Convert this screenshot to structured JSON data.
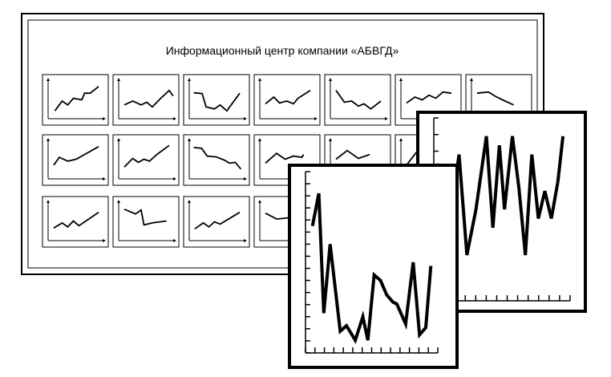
{
  "dashboard": {
    "title": "Информационный центр компании «АБВГД»"
  },
  "mini_charts": [
    [
      [
        0.12,
        0.2
      ],
      [
        0.25,
        0.45
      ],
      [
        0.35,
        0.35
      ],
      [
        0.45,
        0.52
      ],
      [
        0.6,
        0.48
      ],
      [
        0.65,
        0.65
      ],
      [
        0.75,
        0.65
      ],
      [
        0.9,
        0.82
      ]
    ],
    [
      [
        0.1,
        0.35
      ],
      [
        0.25,
        0.45
      ],
      [
        0.4,
        0.35
      ],
      [
        0.5,
        0.42
      ],
      [
        0.6,
        0.3
      ],
      [
        0.75,
        0.52
      ],
      [
        0.9,
        0.72
      ],
      [
        0.97,
        0.58
      ]
    ],
    [
      [
        0.08,
        0.66
      ],
      [
        0.23,
        0.64
      ],
      [
        0.3,
        0.3
      ],
      [
        0.45,
        0.25
      ],
      [
        0.55,
        0.35
      ],
      [
        0.67,
        0.2
      ],
      [
        0.9,
        0.65
      ]
    ],
    [
      [
        0.1,
        0.38
      ],
      [
        0.25,
        0.55
      ],
      [
        0.35,
        0.4
      ],
      [
        0.48,
        0.45
      ],
      [
        0.6,
        0.38
      ],
      [
        0.68,
        0.52
      ],
      [
        0.9,
        0.72
      ]
    ],
    [
      [
        0.1,
        0.72
      ],
      [
        0.25,
        0.42
      ],
      [
        0.38,
        0.45
      ],
      [
        0.5,
        0.32
      ],
      [
        0.6,
        0.38
      ],
      [
        0.72,
        0.25
      ],
      [
        0.9,
        0.45
      ]
    ],
    [
      [
        0.1,
        0.4
      ],
      [
        0.25,
        0.55
      ],
      [
        0.38,
        0.48
      ],
      [
        0.5,
        0.6
      ],
      [
        0.62,
        0.52
      ],
      [
        0.75,
        0.68
      ],
      [
        0.9,
        0.65
      ]
    ],
    [
      [
        0.1,
        0.65
      ],
      [
        0.3,
        0.68
      ],
      [
        0.45,
        0.55
      ],
      [
        0.6,
        0.45
      ],
      [
        0.75,
        0.35
      ]
    ],
    [
      [
        0.1,
        0.35
      ],
      [
        0.2,
        0.55
      ],
      [
        0.35,
        0.45
      ],
      [
        0.5,
        0.5
      ],
      [
        0.9,
        0.82
      ]
    ],
    [
      [
        0.1,
        0.3
      ],
      [
        0.25,
        0.52
      ],
      [
        0.35,
        0.42
      ],
      [
        0.45,
        0.5
      ],
      [
        0.55,
        0.45
      ],
      [
        0.68,
        0.62
      ],
      [
        0.9,
        0.85
      ]
    ],
    [
      [
        0.08,
        0.8
      ],
      [
        0.22,
        0.78
      ],
      [
        0.32,
        0.58
      ],
      [
        0.48,
        0.56
      ],
      [
        0.62,
        0.48
      ],
      [
        0.72,
        0.4
      ],
      [
        0.82,
        0.42
      ],
      [
        0.92,
        0.25
      ]
    ],
    [
      [
        0.1,
        0.4
      ],
      [
        0.3,
        0.65
      ],
      [
        0.45,
        0.5
      ],
      [
        0.6,
        0.58
      ],
      [
        0.75,
        0.55
      ],
      [
        0.78,
        0.62
      ]
    ],
    [
      [
        0.1,
        0.5
      ],
      [
        0.3,
        0.72
      ],
      [
        0.5,
        0.52
      ],
      [
        0.7,
        0.62
      ]
    ],
    [
      [
        0.1,
        0.35
      ],
      [
        0.3,
        0.72
      ],
      [
        0.5,
        0.56
      ]
    ],
    [
      [
        0.1,
        0.32
      ],
      [
        0.25,
        0.45
      ],
      [
        0.35,
        0.35
      ],
      [
        0.45,
        0.5
      ],
      [
        0.55,
        0.38
      ],
      [
        0.9,
        0.72
      ]
    ],
    [
      [
        0.1,
        0.8
      ],
      [
        0.3,
        0.68
      ],
      [
        0.4,
        0.78
      ],
      [
        0.45,
        0.4
      ],
      [
        0.6,
        0.45
      ],
      [
        0.85,
        0.5
      ]
    ],
    [
      [
        0.1,
        0.3
      ],
      [
        0.25,
        0.45
      ],
      [
        0.35,
        0.35
      ],
      [
        0.45,
        0.48
      ],
      [
        0.55,
        0.42
      ],
      [
        0.9,
        0.72
      ]
    ],
    [
      [
        0.1,
        0.7
      ],
      [
        0.3,
        0.55
      ],
      [
        0.5,
        0.58
      ]
    ]
  ],
  "detail_charts": [
    [
      [
        0.03,
        0.3
      ],
      [
        0.08,
        0.12
      ],
      [
        0.12,
        0.78
      ],
      [
        0.17,
        0.4
      ],
      [
        0.25,
        0.88
      ],
      [
        0.3,
        0.85
      ],
      [
        0.37,
        0.93
      ],
      [
        0.43,
        0.8
      ],
      [
        0.47,
        0.93
      ],
      [
        0.52,
        0.57
      ],
      [
        0.57,
        0.6
      ],
      [
        0.62,
        0.68
      ],
      [
        0.67,
        0.72
      ],
      [
        0.7,
        0.73
      ],
      [
        0.77,
        0.84
      ],
      [
        0.83,
        0.5
      ],
      [
        0.88,
        0.9
      ],
      [
        0.93,
        0.86
      ],
      [
        0.97,
        0.52
      ]
    ],
    [
      [
        0.0,
        0.25
      ],
      [
        0.1,
        0.55
      ],
      [
        0.17,
        0.2
      ],
      [
        0.23,
        0.75
      ],
      [
        0.3,
        0.5
      ],
      [
        0.38,
        0.1
      ],
      [
        0.43,
        0.6
      ],
      [
        0.48,
        0.15
      ],
      [
        0.52,
        0.5
      ],
      [
        0.58,
        0.1
      ],
      [
        0.63,
        0.38
      ],
      [
        0.68,
        0.75
      ],
      [
        0.73,
        0.2
      ],
      [
        0.78,
        0.55
      ],
      [
        0.83,
        0.4
      ],
      [
        0.88,
        0.55
      ],
      [
        0.93,
        0.35
      ],
      [
        0.97,
        0.1
      ]
    ]
  ]
}
